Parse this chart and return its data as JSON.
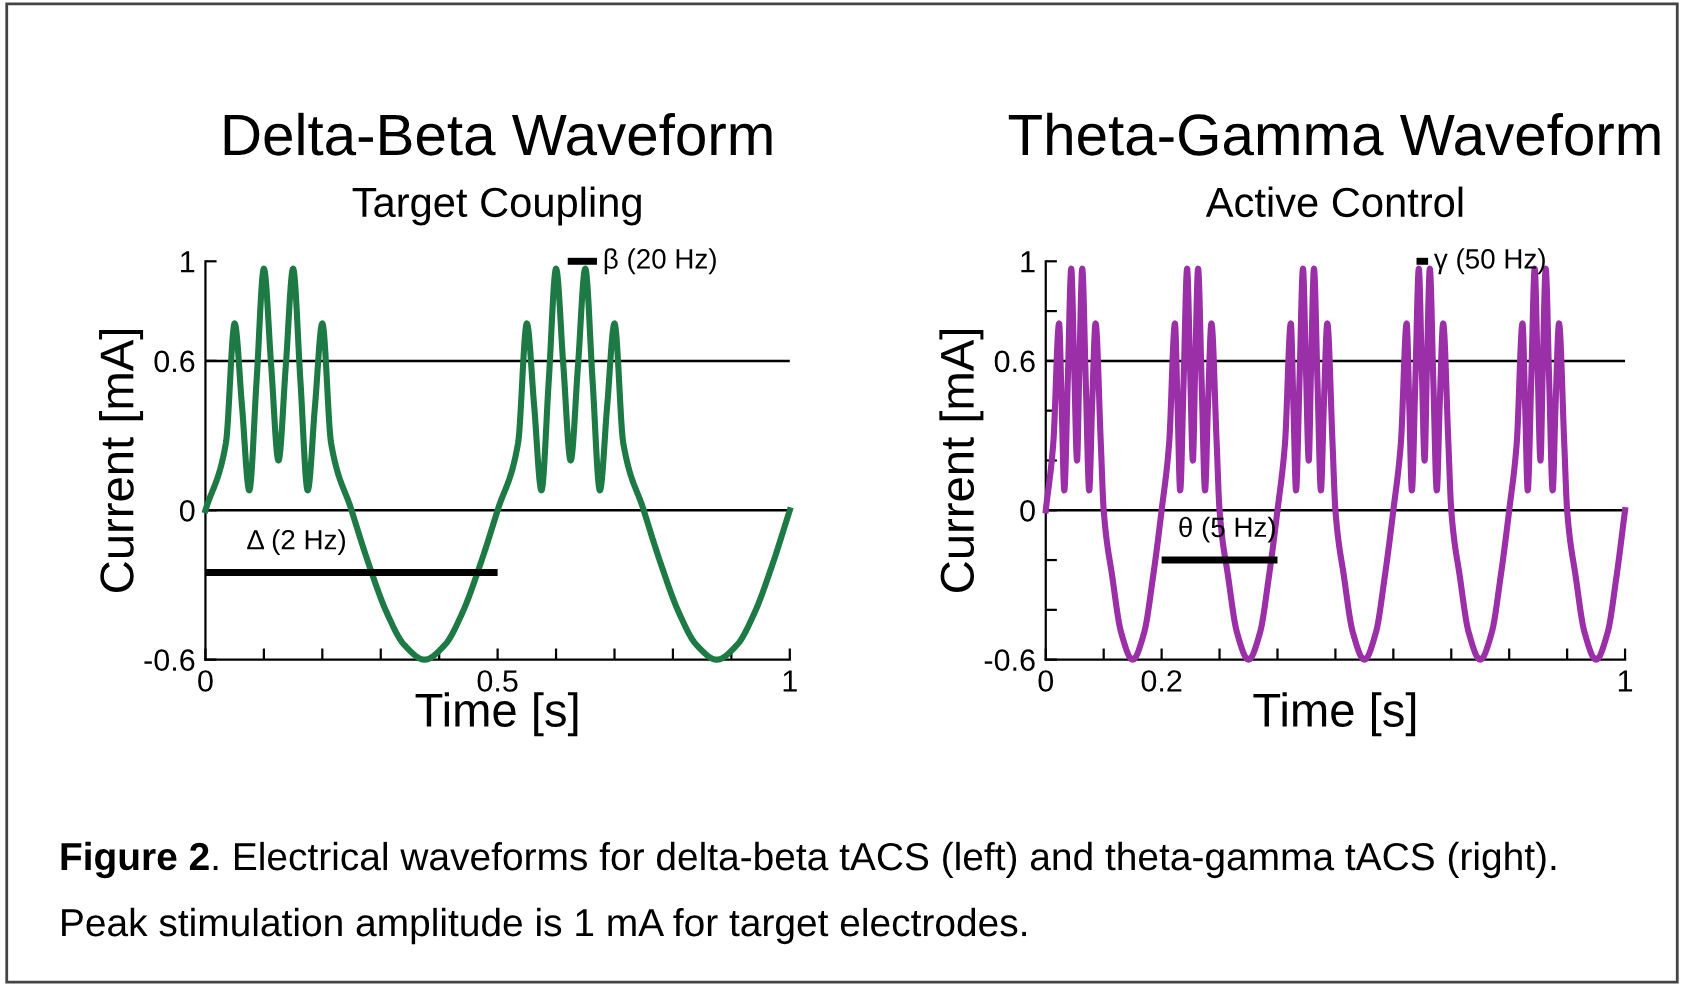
{
  "chart_data": [
    {
      "type": "line",
      "title": "Delta-Beta Waveform",
      "subtitle": "Target Coupling",
      "xlabel": "Time [s]",
      "ylabel": "Current [mA]",
      "xlim": [
        0,
        1
      ],
      "ylim": [
        -0.6,
        1
      ],
      "xticks": [
        0,
        {
          "value": 0.1,
          "label": null
        },
        {
          "value": 0.2,
          "label": null
        },
        {
          "value": 0.3,
          "label": null
        },
        {
          "value": 0.4,
          "label": null
        },
        0.5,
        {
          "value": 0.6,
          "label": null
        },
        {
          "value": 0.7,
          "label": null
        },
        {
          "value": 0.8,
          "label": null
        },
        {
          "value": 0.9,
          "label": null
        },
        1
      ],
      "yticks": [
        -0.6,
        0,
        0.6,
        1
      ],
      "grid": false,
      "legend": false,
      "line_style": "solid",
      "ref_lines": [
        {
          "axis": "y",
          "value": 0.6,
          "label": null,
          "color": "#000000"
        },
        {
          "axis": "y",
          "value": 0,
          "label": null,
          "color": "#000000"
        }
      ],
      "series": [
        {
          "color": "#1e7a45",
          "x": [
            0,
            0.035,
            0.05,
            0.0625,
            0.075,
            0.0875,
            0.1,
            0.1125,
            0.125,
            0.1375,
            0.15,
            0.1625,
            0.175,
            0.1875,
            0.2,
            0.215,
            0.25,
            0.28,
            0.31,
            0.34,
            0.375,
            0.41,
            0.44,
            0.47,
            0.5,
            0.535,
            0.55,
            0.5625,
            0.575,
            0.5875,
            0.6,
            0.6125,
            0.625,
            0.6375,
            0.65,
            0.6625,
            0.675,
            0.6875,
            0.7,
            0.715,
            0.75,
            0.78,
            0.81,
            0.84,
            0.875,
            0.91,
            0.94,
            0.97,
            1.0
          ],
          "values": [
            0,
            0.27,
            0.75,
            0.42,
            0.08,
            0.52,
            0.97,
            0.58,
            0.2,
            0.58,
            0.97,
            0.52,
            0.08,
            0.42,
            0.75,
            0.27,
            0,
            -0.22,
            -0.41,
            -0.54,
            -0.6,
            -0.54,
            -0.41,
            -0.22,
            0,
            0.27,
            0.75,
            0.42,
            0.08,
            0.52,
            0.97,
            0.58,
            0.2,
            0.58,
            0.97,
            0.52,
            0.08,
            0.42,
            0.75,
            0.27,
            0,
            -0.22,
            -0.41,
            -0.54,
            -0.6,
            -0.54,
            -0.41,
            -0.22,
            0
          ]
        },
        {
          "name": "Δ (2 Hz)",
          "color": "#000000",
          "x": [
            0,
            0.5
          ],
          "values": [
            -0.25,
            -0.25
          ]
        },
        {
          "name": "β (20 Hz)",
          "color": "#000000",
          "x": [
            0.62,
            0.67
          ],
          "values": [
            1,
            1
          ]
        }
      ],
      "annotations": [
        "Figure 2. Electrical waveforms for delta-beta tACS (left) and theta-gamma tACS (right). Peak stimulation amplitude is 1 mA for target electrodes."
      ]
    },
    {
      "type": "line",
      "title": "Theta-Gamma Waveform",
      "subtitle": "Active Control",
      "xlabel": "Time [s]",
      "ylabel": "Current [mA]",
      "xlim": [
        0,
        1
      ],
      "ylim": [
        -0.6,
        1
      ],
      "xticks": [
        0,
        {
          "value": 0.1,
          "label": null
        },
        0.2,
        {
          "value": 0.3,
          "label": null
        },
        {
          "value": 0.4,
          "label": null
        },
        {
          "value": 0.5,
          "label": null
        },
        {
          "value": 0.6,
          "label": null
        },
        {
          "value": 0.7,
          "label": null
        },
        {
          "value": 0.8,
          "label": null
        },
        {
          "value": 0.9,
          "label": null
        },
        1
      ],
      "yticks": [
        -0.6,
        {
          "value": -0.4,
          "label": null
        },
        {
          "value": -0.2,
          "label": null
        },
        0,
        {
          "value": 0.2,
          "label": null
        },
        {
          "value": 0.4,
          "label": null
        },
        0.6,
        {
          "value": 0.8,
          "label": null
        },
        1
      ],
      "grid": false,
      "legend": false,
      "line_style": "solid",
      "ref_lines": [
        {
          "axis": "y",
          "value": 0.6,
          "label": null,
          "color": "#000000"
        },
        {
          "axis": "y",
          "value": 0,
          "label": null,
          "color": "#000000"
        }
      ],
      "series": [
        {
          "color": "#9b2fa8",
          "x": [
            0,
            0.013,
            0.023,
            0.0275,
            0.032,
            0.038,
            0.044,
            0.049,
            0.054,
            0.058,
            0.063,
            0.069,
            0.075,
            0.08,
            0.086,
            0.095,
            0.1,
            0.115,
            0.13,
            0.15,
            0.17,
            0.185,
            0.2,
            0.213,
            0.223,
            0.2275,
            0.232,
            0.238,
            0.244,
            0.249,
            0.254,
            0.258,
            0.263,
            0.269,
            0.275,
            0.28,
            0.286,
            0.295,
            0.3,
            0.315,
            0.33,
            0.35,
            0.37,
            0.385,
            0.4,
            0.413,
            0.423,
            0.4275,
            0.432,
            0.438,
            0.444,
            0.449,
            0.454,
            0.458,
            0.463,
            0.469,
            0.475,
            0.48,
            0.486,
            0.495,
            0.5,
            0.515,
            0.53,
            0.55,
            0.57,
            0.585,
            0.6,
            0.613,
            0.623,
            0.6275,
            0.632,
            0.638,
            0.644,
            0.649,
            0.654,
            0.658,
            0.663,
            0.669,
            0.675,
            0.68,
            0.686,
            0.695,
            0.7,
            0.715,
            0.73,
            0.75,
            0.77,
            0.785,
            0.8,
            0.813,
            0.823,
            0.8275,
            0.832,
            0.838,
            0.844,
            0.849,
            0.854,
            0.858,
            0.863,
            0.869,
            0.875,
            0.88,
            0.886,
            0.895,
            0.9,
            0.915,
            0.93,
            0.95,
            0.97,
            0.985,
            1.0
          ],
          "values": [
            0,
            0.27,
            0.75,
            0.42,
            0.08,
            0.52,
            0.97,
            0.58,
            0.2,
            0.58,
            0.97,
            0.52,
            0.08,
            0.42,
            0.75,
            0.27,
            0,
            -0.27,
            -0.49,
            -0.6,
            -0.49,
            -0.27,
            0,
            0.27,
            0.75,
            0.42,
            0.08,
            0.52,
            0.97,
            0.58,
            0.2,
            0.58,
            0.97,
            0.52,
            0.08,
            0.42,
            0.75,
            0.27,
            0,
            -0.27,
            -0.49,
            -0.6,
            -0.49,
            -0.27,
            0,
            0.27,
            0.75,
            0.42,
            0.08,
            0.52,
            0.97,
            0.58,
            0.2,
            0.58,
            0.97,
            0.52,
            0.08,
            0.42,
            0.75,
            0.27,
            0,
            -0.27,
            -0.49,
            -0.6,
            -0.49,
            -0.27,
            0,
            0.27,
            0.75,
            0.42,
            0.08,
            0.52,
            0.97,
            0.58,
            0.2,
            0.58,
            0.97,
            0.52,
            0.08,
            0.42,
            0.75,
            0.27,
            0,
            -0.27,
            -0.49,
            -0.6,
            -0.49,
            -0.27,
            0,
            0.27,
            0.75,
            0.42,
            0.08,
            0.52,
            0.97,
            0.58,
            0.2,
            0.58,
            0.97,
            0.52,
            0.08,
            0.42,
            0.75,
            0.27,
            0,
            -0.27,
            -0.49,
            -0.6,
            -0.49,
            -0.27,
            0
          ]
        },
        {
          "name": "θ (5 Hz)",
          "color": "#000000",
          "x": [
            0.2,
            0.4
          ],
          "values": [
            -0.2,
            -0.2
          ]
        },
        {
          "name": "γ (50 Hz)",
          "color": "#000000",
          "x": [
            0.64,
            0.66
          ],
          "values": [
            1,
            1
          ]
        }
      ]
    }
  ]
}
